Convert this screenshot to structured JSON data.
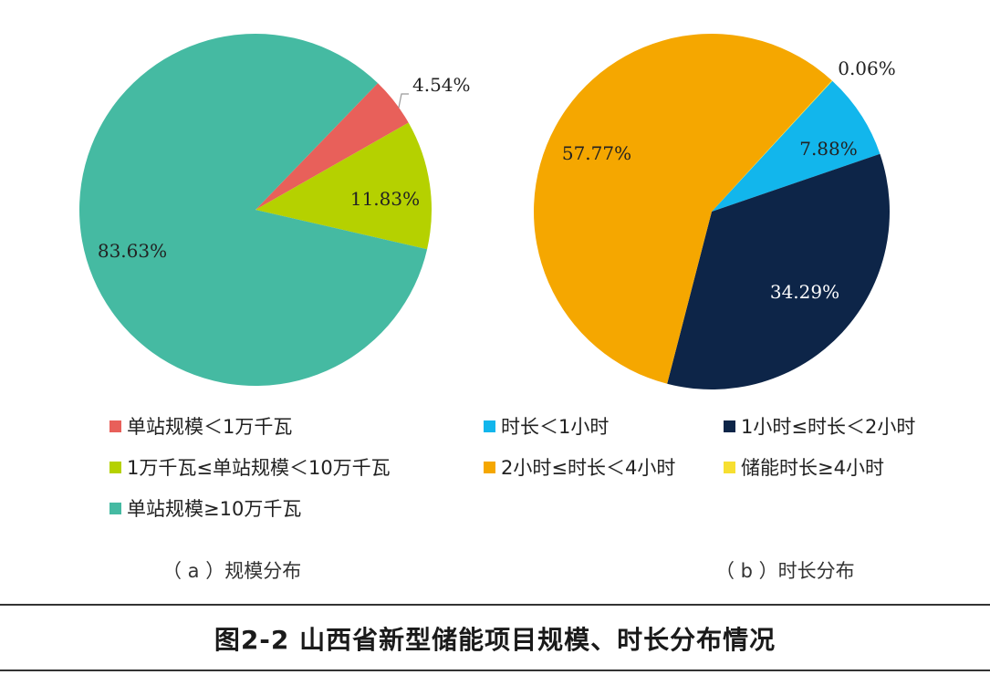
{
  "chart_data": [
    {
      "type": "pie",
      "caption": "（ a ）规模分布",
      "slices": [
        {
          "label": "单站规模＜1万千瓦",
          "value": 4.54,
          "display": "4.54%",
          "color": "#E8605A"
        },
        {
          "label": "1万千瓦≤单站规模＜10万千瓦",
          "value": 11.83,
          "display": "11.83%",
          "color": "#B5D100"
        },
        {
          "label": "单站规模≥10万千瓦",
          "value": 83.63,
          "display": "83.63%",
          "color": "#45BAA2"
        }
      ]
    },
    {
      "type": "pie",
      "caption": "（ b ）时长分布",
      "slices": [
        {
          "label": "时长＜1小时",
          "value": 7.88,
          "display": "7.88%",
          "color": "#12B6EC"
        },
        {
          "label": "1小时≤时长＜2小时",
          "value": 34.29,
          "display": "34.29%",
          "color": "#0D2548"
        },
        {
          "label": "2小时≤时长＜4小时",
          "value": 57.77,
          "display": "57.77%",
          "color": "#F5A700"
        },
        {
          "label": "储能时长≥4小时",
          "value": 0.06,
          "display": "0.06%",
          "color": "#F7DF31"
        }
      ]
    }
  ],
  "figure_title": "图2-2 山西省新型储能项目规模、时长分布情况"
}
